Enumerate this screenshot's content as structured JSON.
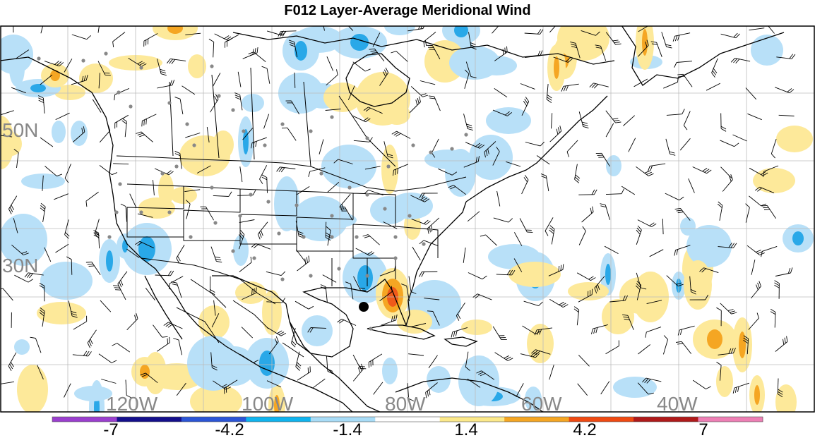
{
  "title": "F012 Layer-Average Meridional Wind",
  "lat_labels": [
    "50N",
    "30N"
  ],
  "lon_labels": [
    "120W",
    "100W",
    "80W",
    "60W",
    "40W"
  ],
  "colorbar": {
    "colors": [
      "#9b3fcf",
      "#140f8c",
      "#2b55d6",
      "#10b4ef",
      "#a8dcf7",
      "#ffffff",
      "#fce98a",
      "#f5a623",
      "#f04a12",
      "#b01a1a",
      "#ee7fb5"
    ],
    "tick_labels": [
      "-7",
      "-4.2",
      "-1.4",
      "1.4",
      "4.2",
      "7"
    ]
  },
  "palette": {
    "negative_light": "#b8e0f8",
    "negative_mid": "#29a8e8",
    "positive_light": "#fde99a",
    "positive_mid": "#f5a623",
    "positive_high": "#ef5a1a",
    "land_outline": "#000000",
    "grid": "#bbbbbb",
    "station": "#888888"
  }
}
